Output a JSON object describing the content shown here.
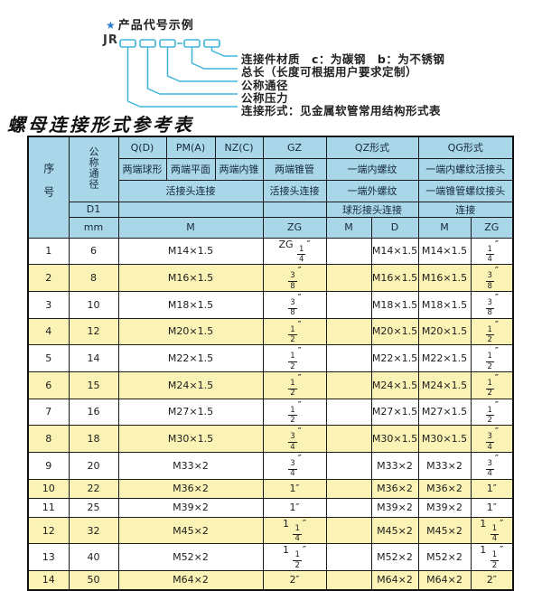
{
  "diagram": {
    "star": "★",
    "title": "产品代号示例",
    "code_prefix": "JR",
    "labels": [
      "连接件材质　c：为碳钢　b：为不锈钢",
      "总长（长度可根据用户要求定制）",
      "公称通径",
      "公称压力",
      "连接形式：见金属软管常用结构形式表"
    ]
  },
  "table": {
    "title": "螺母连接形式参考表",
    "header": {
      "seq": "序号",
      "nominal_diameter": "公称通径",
      "d1": "D1",
      "mm": "mm",
      "forms": [
        {
          "code": "Q(D)",
          "desc": "两端球形"
        },
        {
          "code": "PM(A)",
          "desc": "两端平面"
        },
        {
          "code": "NZ(C)",
          "desc": "两端内锥"
        }
      ],
      "union_conn": "活接头连接",
      "m_unit": "M",
      "gz": {
        "name": "GZ",
        "desc": "两端锥管",
        "conn": "活接头连接",
        "unit": "ZG"
      },
      "qz": {
        "name": "QZ形式",
        "desc1": "一端内螺纹",
        "desc2": "一端外螺纹",
        "desc3": "球形接头连接",
        "unit1": "M",
        "unit2": "D"
      },
      "qg": {
        "name": "QG形式",
        "desc1": "一端内螺纹活接头",
        "desc2": "一端锥管螺纹接头",
        "desc3": "连接",
        "unit1": "M",
        "unit2": "ZG"
      }
    },
    "rows": [
      {
        "seq": "1",
        "mm": "6",
        "m": "M14×1.5",
        "zg": "ZG 1/4″",
        "qz_m": "",
        "qz_d": "M14×1.5",
        "qg_m": "M14×1.5",
        "qg_zg": "1/4″"
      },
      {
        "seq": "2",
        "mm": "8",
        "m": "M16×1.5",
        "zg": "3/8″",
        "qz_m": "",
        "qz_d": "M16×1.5",
        "qg_m": "M16×1.5",
        "qg_zg": "3/8″"
      },
      {
        "seq": "3",
        "mm": "10",
        "m": "M18×1.5",
        "zg": "3/8″",
        "qz_m": "",
        "qz_d": "M18×1.5",
        "qg_m": "M18×1.5",
        "qg_zg": "3/8″"
      },
      {
        "seq": "4",
        "mm": "12",
        "m": "M20×1.5",
        "zg": "1/2″",
        "qz_m": "",
        "qz_d": "M20×1.5",
        "qg_m": "M20×1.5",
        "qg_zg": "1/2″"
      },
      {
        "seq": "5",
        "mm": "14",
        "m": "M22×1.5",
        "zg": "1/2″",
        "qz_m": "",
        "qz_d": "M22×1.5",
        "qg_m": "M22×1.5",
        "qg_zg": "1/2″"
      },
      {
        "seq": "6",
        "mm": "15",
        "m": "M24×1.5",
        "zg": "1/2″",
        "qz_m": "",
        "qz_d": "M24×1.5",
        "qg_m": "M24×1.5",
        "qg_zg": "1/2″"
      },
      {
        "seq": "7",
        "mm": "16",
        "m": "M27×1.5",
        "zg": "1/2″",
        "qz_m": "",
        "qz_d": "M27×1.5",
        "qg_m": "M27×1.5",
        "qg_zg": "1/2″"
      },
      {
        "seq": "8",
        "mm": "18",
        "m": "M30×1.5",
        "zg": "3/4″",
        "qz_m": "",
        "qz_d": "M30×1.5",
        "qg_m": "M30×1.5",
        "qg_zg": "3/4″"
      },
      {
        "seq": "9",
        "mm": "20",
        "m": "M33×2",
        "zg": "3/4″",
        "qz_m": "",
        "qz_d": "M33×2",
        "qg_m": "M33×2",
        "qg_zg": "3/4″"
      },
      {
        "seq": "10",
        "mm": "22",
        "m": "M36×2",
        "zg": "1″",
        "qz_m": "",
        "qz_d": "M36×2",
        "qg_m": "M36×2",
        "qg_zg": "1″"
      },
      {
        "seq": "11",
        "mm": "25",
        "m": "M39×2",
        "zg": "1″",
        "qz_m": "",
        "qz_d": "M39×2",
        "qg_m": "M39×2",
        "qg_zg": "1″"
      },
      {
        "seq": "12",
        "mm": "32",
        "m": "M45×2",
        "zg": "1 1/4″",
        "qz_m": "",
        "qz_d": "M45×2",
        "qg_m": "M45×2",
        "qg_zg": "1 1/4″"
      },
      {
        "seq": "13",
        "mm": "40",
        "m": "M52×2",
        "zg": "1 1/2″",
        "qz_m": "",
        "qz_d": "M52×2",
        "qg_m": "M52×2",
        "qg_zg": "1 1/2″"
      },
      {
        "seq": "14",
        "mm": "50",
        "m": "M64×2",
        "zg": "2″",
        "qz_m": "",
        "qz_d": "M64×2",
        "qg_m": "M64×2",
        "qg_zg": "2″"
      }
    ]
  },
  "colors": {
    "header_bg": "#aad6ea",
    "alt_row_bg": "#fbf3b5",
    "diagram_line": "#41b6d9",
    "star_blue": "#2c7fd0",
    "border": "#1b1b1b"
  }
}
